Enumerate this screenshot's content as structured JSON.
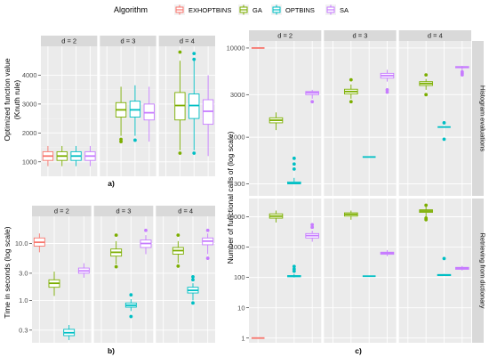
{
  "legend": {
    "title": "Algorithm",
    "items": [
      {
        "label": "EXHOPTBINS",
        "color": "#F8766D"
      },
      {
        "label": "GA",
        "color": "#7CAE00"
      },
      {
        "label": "OPTBINS",
        "color": "#00BFC4"
      },
      {
        "label": "SA",
        "color": "#C77CFF"
      }
    ]
  },
  "colors": {
    "panel_bg": "#EBEBEB",
    "strip_bg": "#D9D9D9",
    "grid_major": "#FFFFFF"
  },
  "chart_data": [
    {
      "id": "a",
      "type": "boxplot",
      "tag": "a)",
      "ylabel_lines": [
        "Optimized function value",
        "(Knuth rule)"
      ],
      "xlabel": "",
      "yscale": "linear",
      "ylim": [
        500,
        5000
      ],
      "yticks": [
        {
          "v": 1000,
          "label": "1000"
        },
        {
          "v": 2000,
          "label": "2000"
        },
        {
          "v": 3000,
          "label": "3000"
        },
        {
          "v": 4000,
          "label": "4000"
        }
      ],
      "facets": [
        {
          "label": "d = 2",
          "boxes": [
            {
              "algo": "EXHOPTBINS",
              "min": 850,
              "q1": 1050,
              "median": 1200,
              "q3": 1350,
              "max": 1550,
              "outliers": []
            },
            {
              "algo": "GA",
              "min": 850,
              "q1": 1050,
              "median": 1200,
              "q3": 1350,
              "max": 1550,
              "outliers": []
            },
            {
              "algo": "OPTBINS",
              "min": 850,
              "q1": 1050,
              "median": 1200,
              "q3": 1350,
              "max": 1550,
              "outliers": []
            },
            {
              "algo": "SA",
              "min": 850,
              "q1": 1050,
              "median": 1200,
              "q3": 1350,
              "max": 1550,
              "outliers": []
            }
          ]
        },
        {
          "label": "d = 3",
          "boxes": [
            {
              "algo": "GA",
              "min": 1900,
              "q1": 2550,
              "median": 2800,
              "q3": 3050,
              "max": 3600,
              "outliers": [
                1700,
                1780
              ]
            },
            {
              "algo": "OPTBINS",
              "min": 1900,
              "q1": 2550,
              "median": 2800,
              "q3": 3100,
              "max": 3650,
              "outliers": [
                1750
              ]
            },
            {
              "algo": "SA",
              "min": 1700,
              "q1": 2450,
              "median": 2700,
              "q3": 3000,
              "max": 3600,
              "outliers": []
            }
          ]
        },
        {
          "label": "d = 4",
          "boxes": [
            {
              "algo": "GA",
              "min": 1400,
              "q1": 2450,
              "median": 2950,
              "q3": 3400,
              "max": 4500,
              "outliers": [
                4800,
                1300
              ]
            },
            {
              "algo": "OPTBINS",
              "min": 1400,
              "q1": 2500,
              "median": 2950,
              "q3": 3350,
              "max": 4500,
              "outliers": [
                4750,
                4550,
                1300
              ]
            },
            {
              "algo": "SA",
              "min": 1200,
              "q1": 2300,
              "median": 2750,
              "q3": 3150,
              "max": 4000,
              "outliers": []
            }
          ]
        }
      ]
    },
    {
      "id": "b",
      "type": "boxplot",
      "tag": "b)",
      "ylabel_lines": [
        "Time in seconds (log scale)"
      ],
      "xlabel": "",
      "yscale": "log",
      "ylim": [
        0.18,
        30
      ],
      "yticks": [
        {
          "v": 0.3,
          "label": "0.3"
        },
        {
          "v": 1,
          "label": "1.0"
        },
        {
          "v": 3,
          "label": "3.0"
        },
        {
          "v": 10,
          "label": "10.0"
        }
      ],
      "facets": [
        {
          "label": "d = 2",
          "boxes": [
            {
              "algo": "EXHOPTBINS",
              "min": 7,
              "q1": 9,
              "median": 10.5,
              "q3": 12.5,
              "max": 15,
              "outliers": []
            },
            {
              "algo": "GA",
              "min": 1.2,
              "q1": 1.7,
              "median": 2.0,
              "q3": 2.3,
              "max": 3.2,
              "outliers": []
            },
            {
              "algo": "OPTBINS",
              "min": 0.2,
              "q1": 0.24,
              "median": 0.27,
              "q3": 0.31,
              "max": 0.37,
              "outliers": []
            },
            {
              "algo": "SA",
              "min": 2.5,
              "q1": 3.0,
              "median": 3.3,
              "q3": 3.7,
              "max": 4.5,
              "outliers": []
            }
          ]
        },
        {
          "label": "d = 3",
          "boxes": [
            {
              "algo": "GA",
              "min": 4.3,
              "q1": 6,
              "median": 7,
              "q3": 8,
              "max": 11,
              "outliers": [
                14,
                3.9
              ]
            },
            {
              "algo": "OPTBINS",
              "min": 0.65,
              "q1": 0.76,
              "median": 0.82,
              "q3": 0.9,
              "max": 1.05,
              "outliers": [
                1.25,
                0.52
              ]
            },
            {
              "algo": "SA",
              "min": 6.5,
              "q1": 8.5,
              "median": 10,
              "q3": 11.5,
              "max": 14,
              "outliers": [
                17
              ]
            }
          ]
        },
        {
          "label": "d = 4",
          "boxes": [
            {
              "algo": "GA",
              "min": 4.5,
              "q1": 6.5,
              "median": 7.5,
              "q3": 8.5,
              "max": 11,
              "outliers": [
                14,
                4.0
              ]
            },
            {
              "algo": "OPTBINS",
              "min": 1.0,
              "q1": 1.35,
              "median": 1.5,
              "q3": 1.7,
              "max": 2.0,
              "outliers": [
                2.3,
                2.6,
                0.9
              ]
            },
            {
              "algo": "SA",
              "min": 6.5,
              "q1": 9.5,
              "median": 11,
              "q3": 12.5,
              "max": 15,
              "outliers": [
                17,
                5.5
              ]
            }
          ]
        }
      ]
    },
    {
      "id": "c-top",
      "type": "boxplot",
      "tag": "c)",
      "ylabel_lines": [
        "Number of functional calls of (log scale)"
      ],
      "xlabel": "",
      "row_strip": "Histogram evaluations",
      "yscale": "log",
      "ylim": [
        220,
        12000
      ],
      "yticks": [
        {
          "v": 300,
          "label": "300"
        },
        {
          "v": 1000,
          "label": "1000"
        },
        {
          "v": 3000,
          "label": "3000"
        },
        {
          "v": 10000,
          "label": "10000"
        }
      ],
      "facets": [
        {
          "label": "d = 2",
          "boxes": [
            {
              "algo": "EXHOPTBINS",
              "min": 10000,
              "q1": 10000,
              "median": 10000,
              "q3": 10000,
              "max": 10000,
              "outliers": []
            },
            {
              "algo": "GA",
              "min": 1200,
              "q1": 1450,
              "median": 1550,
              "q3": 1650,
              "max": 1900,
              "outliers": []
            },
            {
              "algo": "OPTBINS",
              "min": 300,
              "q1": 300,
              "median": 305,
              "q3": 315,
              "max": 350,
              "outliers": [
                580,
                500,
                440
              ]
            },
            {
              "algo": "SA",
              "min": 2700,
              "q1": 3000,
              "median": 3150,
              "q3": 3250,
              "max": 3400,
              "outliers": [
                2500
              ]
            }
          ]
        },
        {
          "label": "d = 3",
          "boxes": [
            {
              "algo": "GA",
              "min": 2700,
              "q1": 3050,
              "median": 3250,
              "q3": 3450,
              "max": 3900,
              "outliers": [
                4400,
                2500
              ]
            },
            {
              "algo": "OPTBINS",
              "min": 600,
              "q1": 600,
              "median": 600,
              "q3": 600,
              "max": 600,
              "outliers": []
            },
            {
              "algo": "SA",
              "min": 4200,
              "q1": 4600,
              "median": 4900,
              "q3": 5200,
              "max": 5700,
              "outliers": [
                3400,
                3200
              ]
            }
          ]
        },
        {
          "label": "d = 4",
          "boxes": [
            {
              "algo": "GA",
              "min": 3400,
              "q1": 3800,
              "median": 4000,
              "q3": 4200,
              "max": 4500,
              "outliers": [
                5000,
                3000
              ]
            },
            {
              "algo": "OPTBINS",
              "min": 1300,
              "q1": 1300,
              "median": 1300,
              "q3": 1300,
              "max": 1300,
              "outliers": [
                1450,
                950
              ]
            },
            {
              "algo": "SA",
              "min": 5600,
              "q1": 6000,
              "median": 6100,
              "q3": 6200,
              "max": 6300,
              "outliers": [
                5400,
                5200,
                5000
              ]
            }
          ]
        }
      ]
    },
    {
      "id": "c-bottom",
      "type": "boxplot",
      "tag": "",
      "ylabel_lines": [],
      "xlabel": "",
      "row_strip": "Retrieving from dictionary",
      "yscale": "log",
      "ylim": [
        0.7,
        40000
      ],
      "yticks": [
        {
          "v": 1,
          "label": "1"
        },
        {
          "v": 10,
          "label": "10"
        },
        {
          "v": 100,
          "label": "100"
        },
        {
          "v": 1000,
          "label": "1000"
        },
        {
          "v": 10000,
          "label": "10000"
        }
      ],
      "facets": [
        {
          "label": "d = 2",
          "boxes": [
            {
              "algo": "EXHOPTBINS",
              "min": 1,
              "q1": 1,
              "median": 1,
              "q3": 1,
              "max": 1,
              "outliers": []
            },
            {
              "algo": "GA",
              "min": 6500,
              "q1": 9000,
              "median": 10500,
              "q3": 12500,
              "max": 16000,
              "outliers": []
            },
            {
              "algo": "OPTBINS",
              "min": 100,
              "q1": 105,
              "median": 110,
              "q3": 115,
              "max": 130,
              "outliers": [
                230,
                190,
                160
              ]
            },
            {
              "algo": "SA",
              "min": 1500,
              "q1": 2000,
              "median": 2400,
              "q3": 2800,
              "max": 3500,
              "outliers": [
                5500,
                4500
              ]
            }
          ]
        },
        {
          "label": "d = 3",
          "boxes": [
            {
              "algo": "GA",
              "min": 8000,
              "q1": 10500,
              "median": 12000,
              "q3": 13500,
              "max": 16000,
              "outliers": []
            },
            {
              "algo": "OPTBINS",
              "min": 110,
              "q1": 110,
              "median": 110,
              "q3": 110,
              "max": 110,
              "outliers": []
            },
            {
              "algo": "SA",
              "min": 500,
              "q1": 580,
              "median": 630,
              "q3": 680,
              "max": 800,
              "outliers": []
            }
          ]
        },
        {
          "label": "d = 4",
          "boxes": [
            {
              "algo": "GA",
              "min": 10000,
              "q1": 14000,
              "median": 15500,
              "q3": 17000,
              "max": 22000,
              "outliers": [
                24000,
                9000,
                8000
              ]
            },
            {
              "algo": "OPTBINS",
              "min": 115,
              "q1": 115,
              "median": 120,
              "q3": 125,
              "max": 130,
              "outliers": [
                420
              ]
            },
            {
              "algo": "SA",
              "min": 170,
              "q1": 185,
              "median": 200,
              "q3": 215,
              "max": 240,
              "outliers": []
            }
          ]
        }
      ]
    }
  ]
}
